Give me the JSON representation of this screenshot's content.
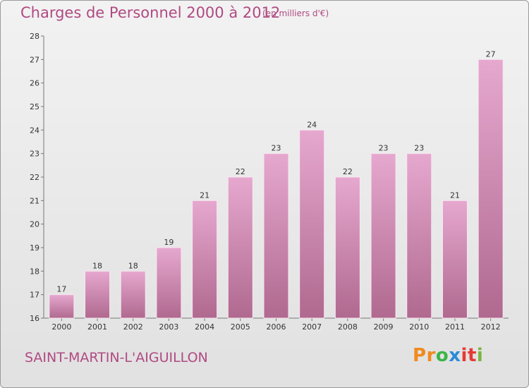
{
  "header": {
    "title": "Charges de Personnel 2000 à 2012",
    "subtitle": "(en milliers d'€)"
  },
  "footer": {
    "commune": "SAINT-MARTIN-L'AIGUILLON",
    "logo_letters": [
      "P",
      "r",
      "o",
      "x",
      "i",
      "t",
      "i"
    ],
    "logo_colors": [
      "#f08a1e",
      "#f08a1e",
      "#3ab54a",
      "#2a8bd8",
      "#e53935",
      "#e53935",
      "#7cb342"
    ]
  },
  "colors": {
    "accent": "#b04a82",
    "bar_light": "#e6a8cf",
    "bar_dark": "#b0698f"
  },
  "chart_data": {
    "type": "bar",
    "title": "Charges de Personnel 2000 à 2012",
    "subtitle": "(en milliers d'€)",
    "categories": [
      "2000",
      "2001",
      "2002",
      "2003",
      "2004",
      "2005",
      "2006",
      "2007",
      "2008",
      "2009",
      "2010",
      "2011",
      "2012"
    ],
    "values": [
      17,
      18,
      18,
      19,
      21,
      22,
      23,
      24,
      22,
      23,
      23,
      21,
      27
    ],
    "ylim": [
      16,
      28
    ],
    "yticks": [
      16,
      17,
      18,
      19,
      20,
      21,
      22,
      23,
      24,
      25,
      26,
      27,
      28
    ],
    "grid": false,
    "legend": "none"
  }
}
